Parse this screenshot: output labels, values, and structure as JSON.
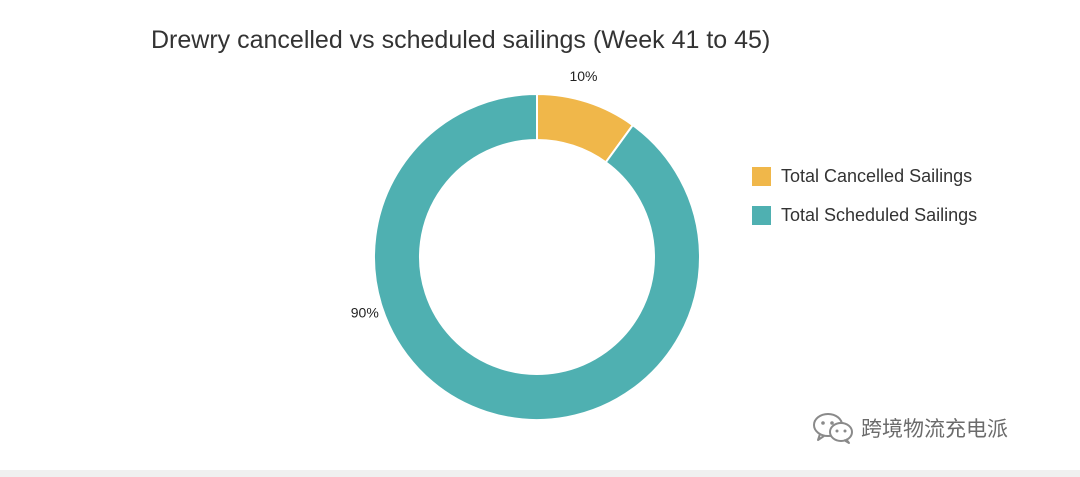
{
  "chart_data": {
    "type": "pie",
    "subtype": "donut",
    "title": "Drewry cancelled vs scheduled sailings (Week 41 to 45)",
    "categories": [
      "Total Cancelled Sailings",
      "Total Scheduled Sailings"
    ],
    "values": [
      10,
      90
    ],
    "labels": [
      "10%",
      "90%"
    ],
    "colors": [
      "#f0b74a",
      "#4fb0b1"
    ],
    "legend_position": "right"
  },
  "watermark": {
    "text": "跨境物流充电派",
    "icon": "wechat-icon"
  }
}
